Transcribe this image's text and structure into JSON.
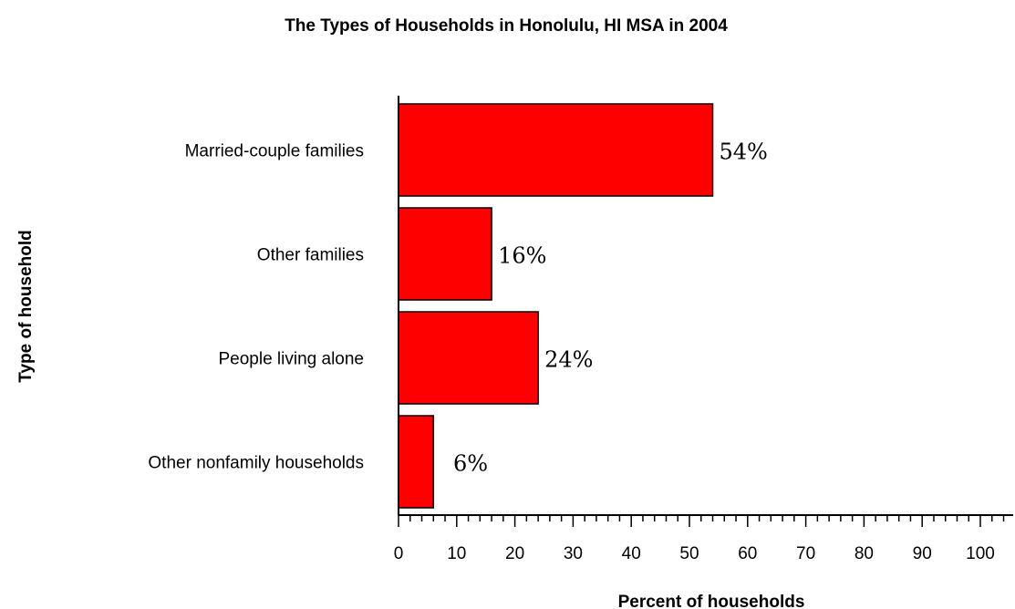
{
  "chart_data": {
    "type": "bar",
    "orientation": "horizontal",
    "title": "The Types of Households in Honolulu, HI MSA in 2004",
    "xlabel": "Percent of households",
    "ylabel": "Type of household",
    "categories": [
      "Married-couple families",
      "Other families",
      "People living alone",
      "Other nonfamily households"
    ],
    "values": [
      54,
      16,
      24,
      6
    ],
    "data_labels": [
      "54%",
      "16%",
      "24%",
      "6%"
    ],
    "xlim": [
      0,
      100
    ],
    "xticks": [
      0,
      10,
      20,
      30,
      40,
      50,
      60,
      70,
      80,
      90,
      100
    ],
    "xtick_labels": [
      "0",
      "10",
      "20",
      "30",
      "40",
      "50",
      "60",
      "70",
      "80",
      "90",
      "100"
    ],
    "grid": false,
    "legend": "none",
    "colors": {
      "bar": "#ff0000",
      "bar_outline": "#000000",
      "axis": "#000000"
    }
  }
}
